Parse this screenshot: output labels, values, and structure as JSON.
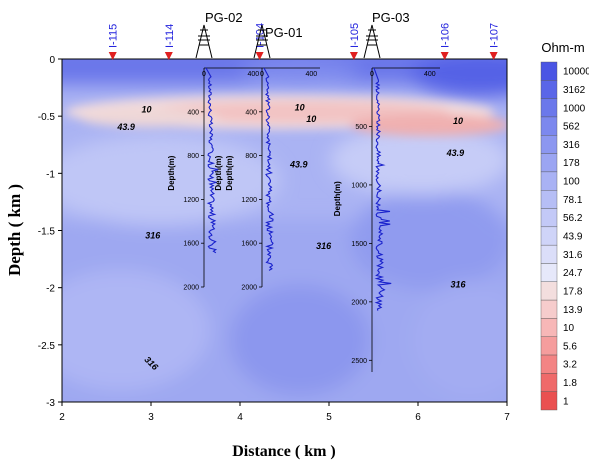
{
  "chart_data": {
    "type": "heatmap",
    "xlabel": "Distance ( km )",
    "ylabel": "Depth ( km )",
    "xlim": [
      2,
      7
    ],
    "ylim": [
      -3,
      0
    ],
    "xticks": [
      "2",
      "3",
      "4",
      "5",
      "6",
      "7"
    ],
    "yticks": [
      "0",
      "-0.5",
      "-1",
      "-1.5",
      "-2",
      "-2.5",
      "-3"
    ],
    "stations": [
      {
        "label": "I-115",
        "x": 2.57
      },
      {
        "label": "I-114",
        "x": 3.2
      },
      {
        "label": "I-104",
        "x": 4.22
      },
      {
        "label": "I-105",
        "x": 5.28
      },
      {
        "label": "I-106",
        "x": 6.3
      },
      {
        "label": "I-107",
        "x": 6.85
      }
    ],
    "contour_labels": [
      {
        "text": "10",
        "x": 2.95,
        "y": -0.47
      },
      {
        "text": "43.9",
        "x": 2.72,
        "y": -0.62
      },
      {
        "text": "316",
        "x": 3.02,
        "y": -1.57
      },
      {
        "text": "316",
        "x": 2.98,
        "y": -2.68
      },
      {
        "text": "10",
        "x": 4.67,
        "y": -0.45
      },
      {
        "text": "10",
        "x": 4.8,
        "y": -0.55
      },
      {
        "text": "43.9",
        "x": 4.66,
        "y": -0.95
      },
      {
        "text": "316",
        "x": 4.94,
        "y": -1.66
      },
      {
        "text": "10",
        "x": 6.45,
        "y": -0.57
      },
      {
        "text": "43.9",
        "x": 6.42,
        "y": -0.85
      },
      {
        "text": "316",
        "x": 6.45,
        "y": -2.0
      }
    ],
    "colorbar": {
      "title": "Ohm-m",
      "levels": [
        "10000",
        "3162",
        "1000",
        "562",
        "316",
        "178",
        "100",
        "78.1",
        "56.2",
        "43.9",
        "31.6",
        "24.7",
        "17.8",
        "13.9",
        "10",
        "5.6",
        "3.2",
        "1.8",
        "1"
      ],
      "colors": [
        "#4a55e4",
        "#5a66e8",
        "#6b78eb",
        "#7c88ee",
        "#8c97f0",
        "#9ba5f2",
        "#a9b2f4",
        "#b6bef5",
        "#c3c9f7",
        "#cfd4f8",
        "#dbdef9",
        "#e6e8fa",
        "#f3dede",
        "#f6cccc",
        "#f7b7b7",
        "#f59d9d",
        "#f38484",
        "#ef6a6a",
        "#ea5050"
      ]
    },
    "wells": [
      {
        "name": "PG-02",
        "xticks": [
          "0",
          "400"
        ],
        "depth_ticks": [
          "400",
          "800",
          "1200",
          "1600",
          "2000"
        ],
        "ylabel": "Depth(m)",
        "max_depth": 2000
      },
      {
        "name": "PG-01",
        "xticks": [
          "0",
          "400"
        ],
        "depth_ticks": [
          "400",
          "800",
          "1200",
          "1600",
          "2000"
        ],
        "ylabel": "Depth(m)",
        "max_depth": 2000
      },
      {
        "name": "PG-03",
        "xticks": [
          "0",
          "400"
        ],
        "depth_ticks": [
          "500",
          "1000",
          "1500",
          "2000",
          "2500"
        ],
        "ylabel": "Depth(m)",
        "max_depth": 2600
      }
    ]
  }
}
